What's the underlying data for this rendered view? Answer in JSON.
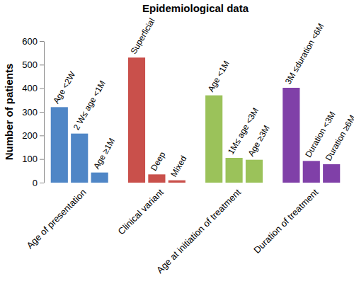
{
  "chart_data": {
    "type": "bar",
    "title": "Epidemiological data",
    "y_label": "Number of patients",
    "ylim": [
      0,
      600
    ],
    "yticks": [
      0,
      100,
      200,
      300,
      400,
      500,
      600
    ],
    "grid": false,
    "series": [
      {
        "name": "Age of presentation",
        "color": "#4f86c6",
        "categories": [
          "Age <2W",
          "2 W≤ age <1M",
          "Age ≥1M"
        ],
        "values": [
          320,
          208,
          43
        ]
      },
      {
        "name": "Clinical variant",
        "color": "#c9504b",
        "categories": [
          "Superficial",
          "Deep",
          "Mixed"
        ],
        "values": [
          530,
          35,
          10
        ]
      },
      {
        "name": "Age at initiation of treatment",
        "color": "#9bc25a",
        "categories": [
          "Age <1M",
          "1M≤ age <3M",
          "Age ≥3M"
        ],
        "values": [
          370,
          105,
          97
        ]
      },
      {
        "name": "Duration of treatment",
        "color": "#8040a8",
        "categories": [
          "3M ≤duration <6M",
          "Duration <3M",
          "Duration ≥6M"
        ],
        "values": [
          402,
          92,
          78
        ]
      }
    ]
  }
}
